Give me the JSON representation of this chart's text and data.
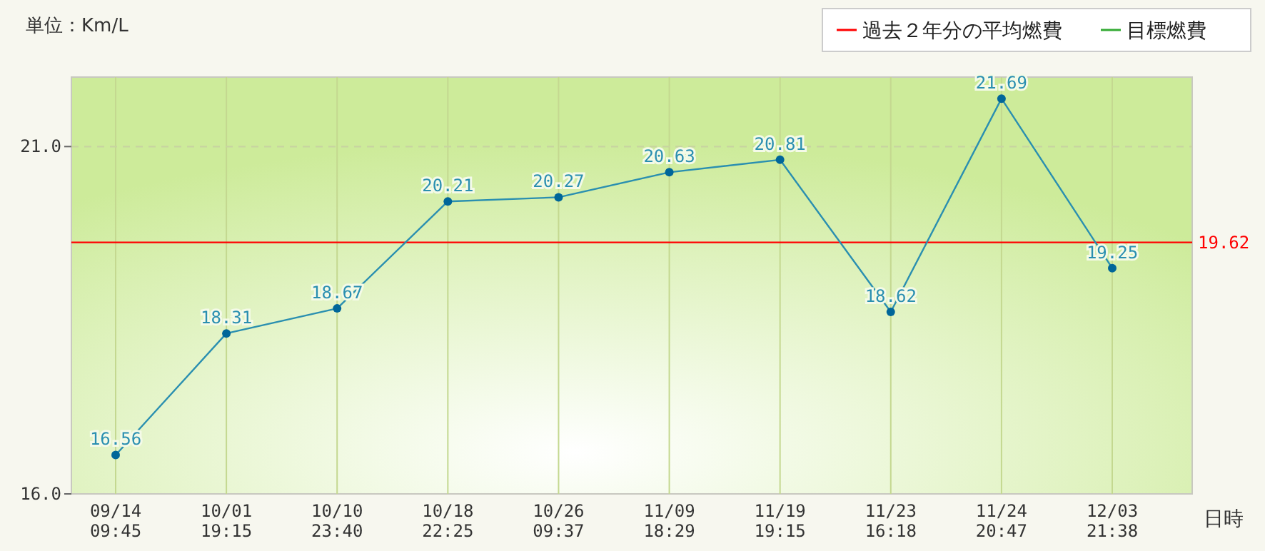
{
  "chart_data": {
    "type": "line",
    "xlabel": "日時",
    "annotations": [
      "単位：Km/L"
    ],
    "categories": [
      "09/14\n09:45",
      "10/01\n19:15",
      "10/10\n23:40",
      "10/18\n22:25",
      "10/26\n09:37",
      "11/09\n18:29",
      "11/19\n19:15",
      "11/23\n16:18",
      "11/24\n20:47",
      "12/03\n21:38"
    ],
    "series": [
      {
        "color": "#2a8fb0",
        "values": [
          16.56,
          18.31,
          18.67,
          20.21,
          20.27,
          20.63,
          20.81,
          18.62,
          21.69,
          19.25
        ]
      },
      {
        "name": "過去２年分の平均燃費",
        "color": "#ff0000",
        "values": [
          null,
          null,
          null,
          null,
          null,
          null,
          null,
          null,
          null,
          null
        ]
      },
      {
        "name": "目標燃費",
        "color": "#33aa33",
        "values": [
          null,
          null,
          null,
          null,
          null,
          null,
          null,
          null,
          null,
          null
        ]
      }
    ],
    "ylim": [
      16,
      22
    ],
    "yticks": [
      {
        "value": 16,
        "label": "16.0"
      },
      {
        "value": 21,
        "label": "21.0"
      }
    ],
    "ref_lines": [
      {
        "axis": "y",
        "value": 19.62,
        "label": "19.62",
        "color": "#ff0000"
      },
      {
        "axis": "y",
        "value": 21,
        "color": "#c8d4a0",
        "line_style": "dashed"
      }
    ],
    "grid": "x",
    "legend": "top right",
    "marker": "circle",
    "data_labels": true
  }
}
